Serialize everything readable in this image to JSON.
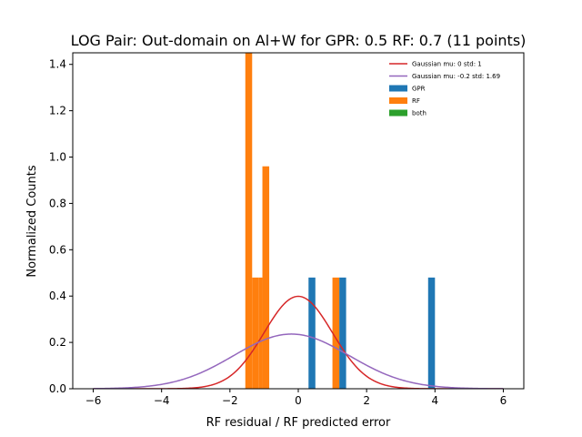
{
  "chart_data": {
    "type": "bar",
    "title": "LOG Pair: Out-domain on Al+W for GPR: 0.5 RF: 0.7 (11 points)",
    "xlabel": "RF residual / RF predicted error",
    "ylabel": "Normalized Counts",
    "xlim": [
      -6.6,
      6.6
    ],
    "ylim": [
      0,
      1.45
    ],
    "xticks": [
      -6,
      -4,
      -2,
      0,
      2,
      4,
      6
    ],
    "xtick_labels": [
      "−6",
      "−4",
      "−2",
      "0",
      "2",
      "4",
      "6"
    ],
    "yticks": [
      0.0,
      0.2,
      0.4,
      0.6,
      0.8,
      1.0,
      1.2,
      1.4
    ],
    "ytick_labels": [
      "0.0",
      "0.2",
      "0.4",
      "0.6",
      "0.8",
      "1.0",
      "1.2",
      "1.4"
    ],
    "grid": false,
    "legend_position": "top-right",
    "legend": [
      {
        "label": "Gaussian mu: 0 std: 1",
        "kind": "line",
        "color": "#d62728"
      },
      {
        "label": "Gaussian mu: -0.2 std: 1.69",
        "kind": "line",
        "color": "#9467bd"
      },
      {
        "label": "GPR",
        "kind": "patch",
        "color": "#1f77b4"
      },
      {
        "label": "RF",
        "kind": "patch",
        "color": "#ff7f0e"
      },
      {
        "label": "both",
        "kind": "patch",
        "color": "#2ca02c"
      }
    ],
    "histograms": [
      {
        "name": "GPR",
        "color": "#1f77b4",
        "bars": [
          {
            "x0": 0.3,
            "x1": 0.5,
            "height": 0.48
          },
          {
            "x0": 1.2,
            "x1": 1.4,
            "height": 0.48
          },
          {
            "x0": 3.8,
            "x1": 4.0,
            "height": 0.48
          }
        ]
      },
      {
        "name": "RF",
        "color": "#ff7f0e",
        "bars": [
          {
            "x0": -1.55,
            "x1": -1.35,
            "height": 1.45
          },
          {
            "x0": -1.35,
            "x1": -1.15,
            "height": 0.48
          },
          {
            "x0": -1.15,
            "x1": -1.05,
            "height": 0.48
          },
          {
            "x0": -1.05,
            "x1": -0.85,
            "height": 0.96
          },
          {
            "x0": 1.0,
            "x1": 1.2,
            "height": 0.48
          }
        ]
      }
    ],
    "curves": [
      {
        "name": "Gaussian mu: 0 std: 1",
        "color": "#d62728",
        "mu": 0,
        "std": 1,
        "x_range": [
          -6,
          6
        ]
      },
      {
        "name": "Gaussian mu: -0.2 std: 1.69",
        "color": "#9467bd",
        "mu": -0.2,
        "std": 1.69,
        "x_range": [
          -6,
          6
        ]
      }
    ]
  }
}
